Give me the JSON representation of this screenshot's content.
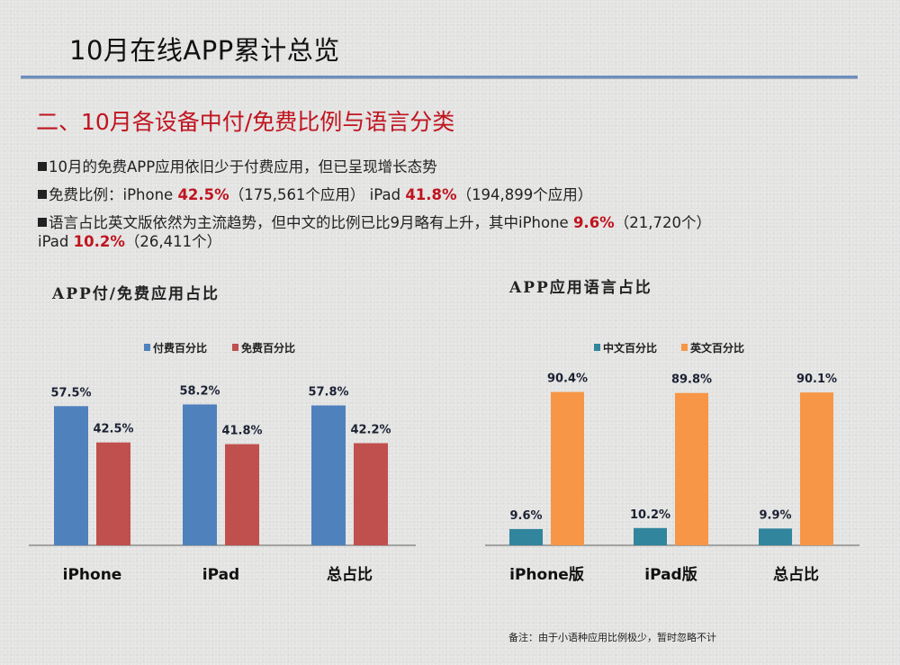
{
  "page": {
    "title": "10月在线APP累计总览",
    "section_title": "二、10月各设备中付/免费比例与语言分类",
    "bullets": [
      {
        "parts": [
          {
            "text": "10月的免费APP应用依旧少于付费应用，但已呈现增长态势",
            "hl": false
          }
        ]
      },
      {
        "parts": [
          {
            "text": "免费比例：iPhone ",
            "hl": false
          },
          {
            "text": "42.5%",
            "hl": true
          },
          {
            "text": "（175,561个应用） iPad ",
            "hl": false
          },
          {
            "text": "41.8%",
            "hl": true
          },
          {
            "text": "（194,899个应用）",
            "hl": false
          }
        ]
      },
      {
        "parts": [
          {
            "text": "语言占比英文版依然为主流趋势，但中文的比例已比9月略有上升，其中iPhone ",
            "hl": false
          },
          {
            "text": "9.6%",
            "hl": true
          },
          {
            "text": "（21,720个）",
            "hl": false
          }
        ]
      }
    ],
    "bullet_continuation": {
      "parts": [
        {
          "text": "iPad ",
          "hl": false
        },
        {
          "text": "10.2%",
          "hl": true
        },
        {
          "text": "（26,411个）",
          "hl": false
        }
      ]
    },
    "note": "备注：由于小语种应用比例极少，暂时忽略不计"
  },
  "chart_data": [
    {
      "type": "bar",
      "title": "APP付/免费应用占比",
      "categories": [
        "iPhone",
        "iPad",
        "总占比"
      ],
      "series": [
        {
          "name": "付费百分比",
          "values": [
            57.5,
            58.2,
            57.8
          ],
          "labels": [
            "57.5%",
            "58.2%",
            "57.8%"
          ],
          "color": "#4f81bd"
        },
        {
          "name": "免费百分比",
          "values": [
            42.5,
            41.8,
            42.2
          ],
          "labels": [
            "42.5%",
            "41.8%",
            "42.2%"
          ],
          "color": "#c0504d"
        }
      ],
      "xlabel": "",
      "ylabel": "",
      "ylim": [
        0,
        60
      ],
      "grid": false,
      "legend": "top-center"
    },
    {
      "type": "bar",
      "title": "APP应用语言占比",
      "categories": [
        "iPhone版",
        "iPad版",
        "总占比"
      ],
      "series": [
        {
          "name": "中文百分比",
          "values": [
            9.6,
            10.2,
            9.9
          ],
          "labels": [
            "9.6%",
            "10.2%",
            "9.9%"
          ],
          "color": "#31859c"
        },
        {
          "name": "英文百分比",
          "values": [
            90.4,
            89.8,
            90.1
          ],
          "labels": [
            "90.4%",
            "89.8%",
            "90.1%"
          ],
          "color": "#f79646"
        }
      ],
      "xlabel": "",
      "ylabel": "",
      "ylim": [
        0,
        95
      ],
      "grid": false,
      "legend": "top-center"
    }
  ]
}
